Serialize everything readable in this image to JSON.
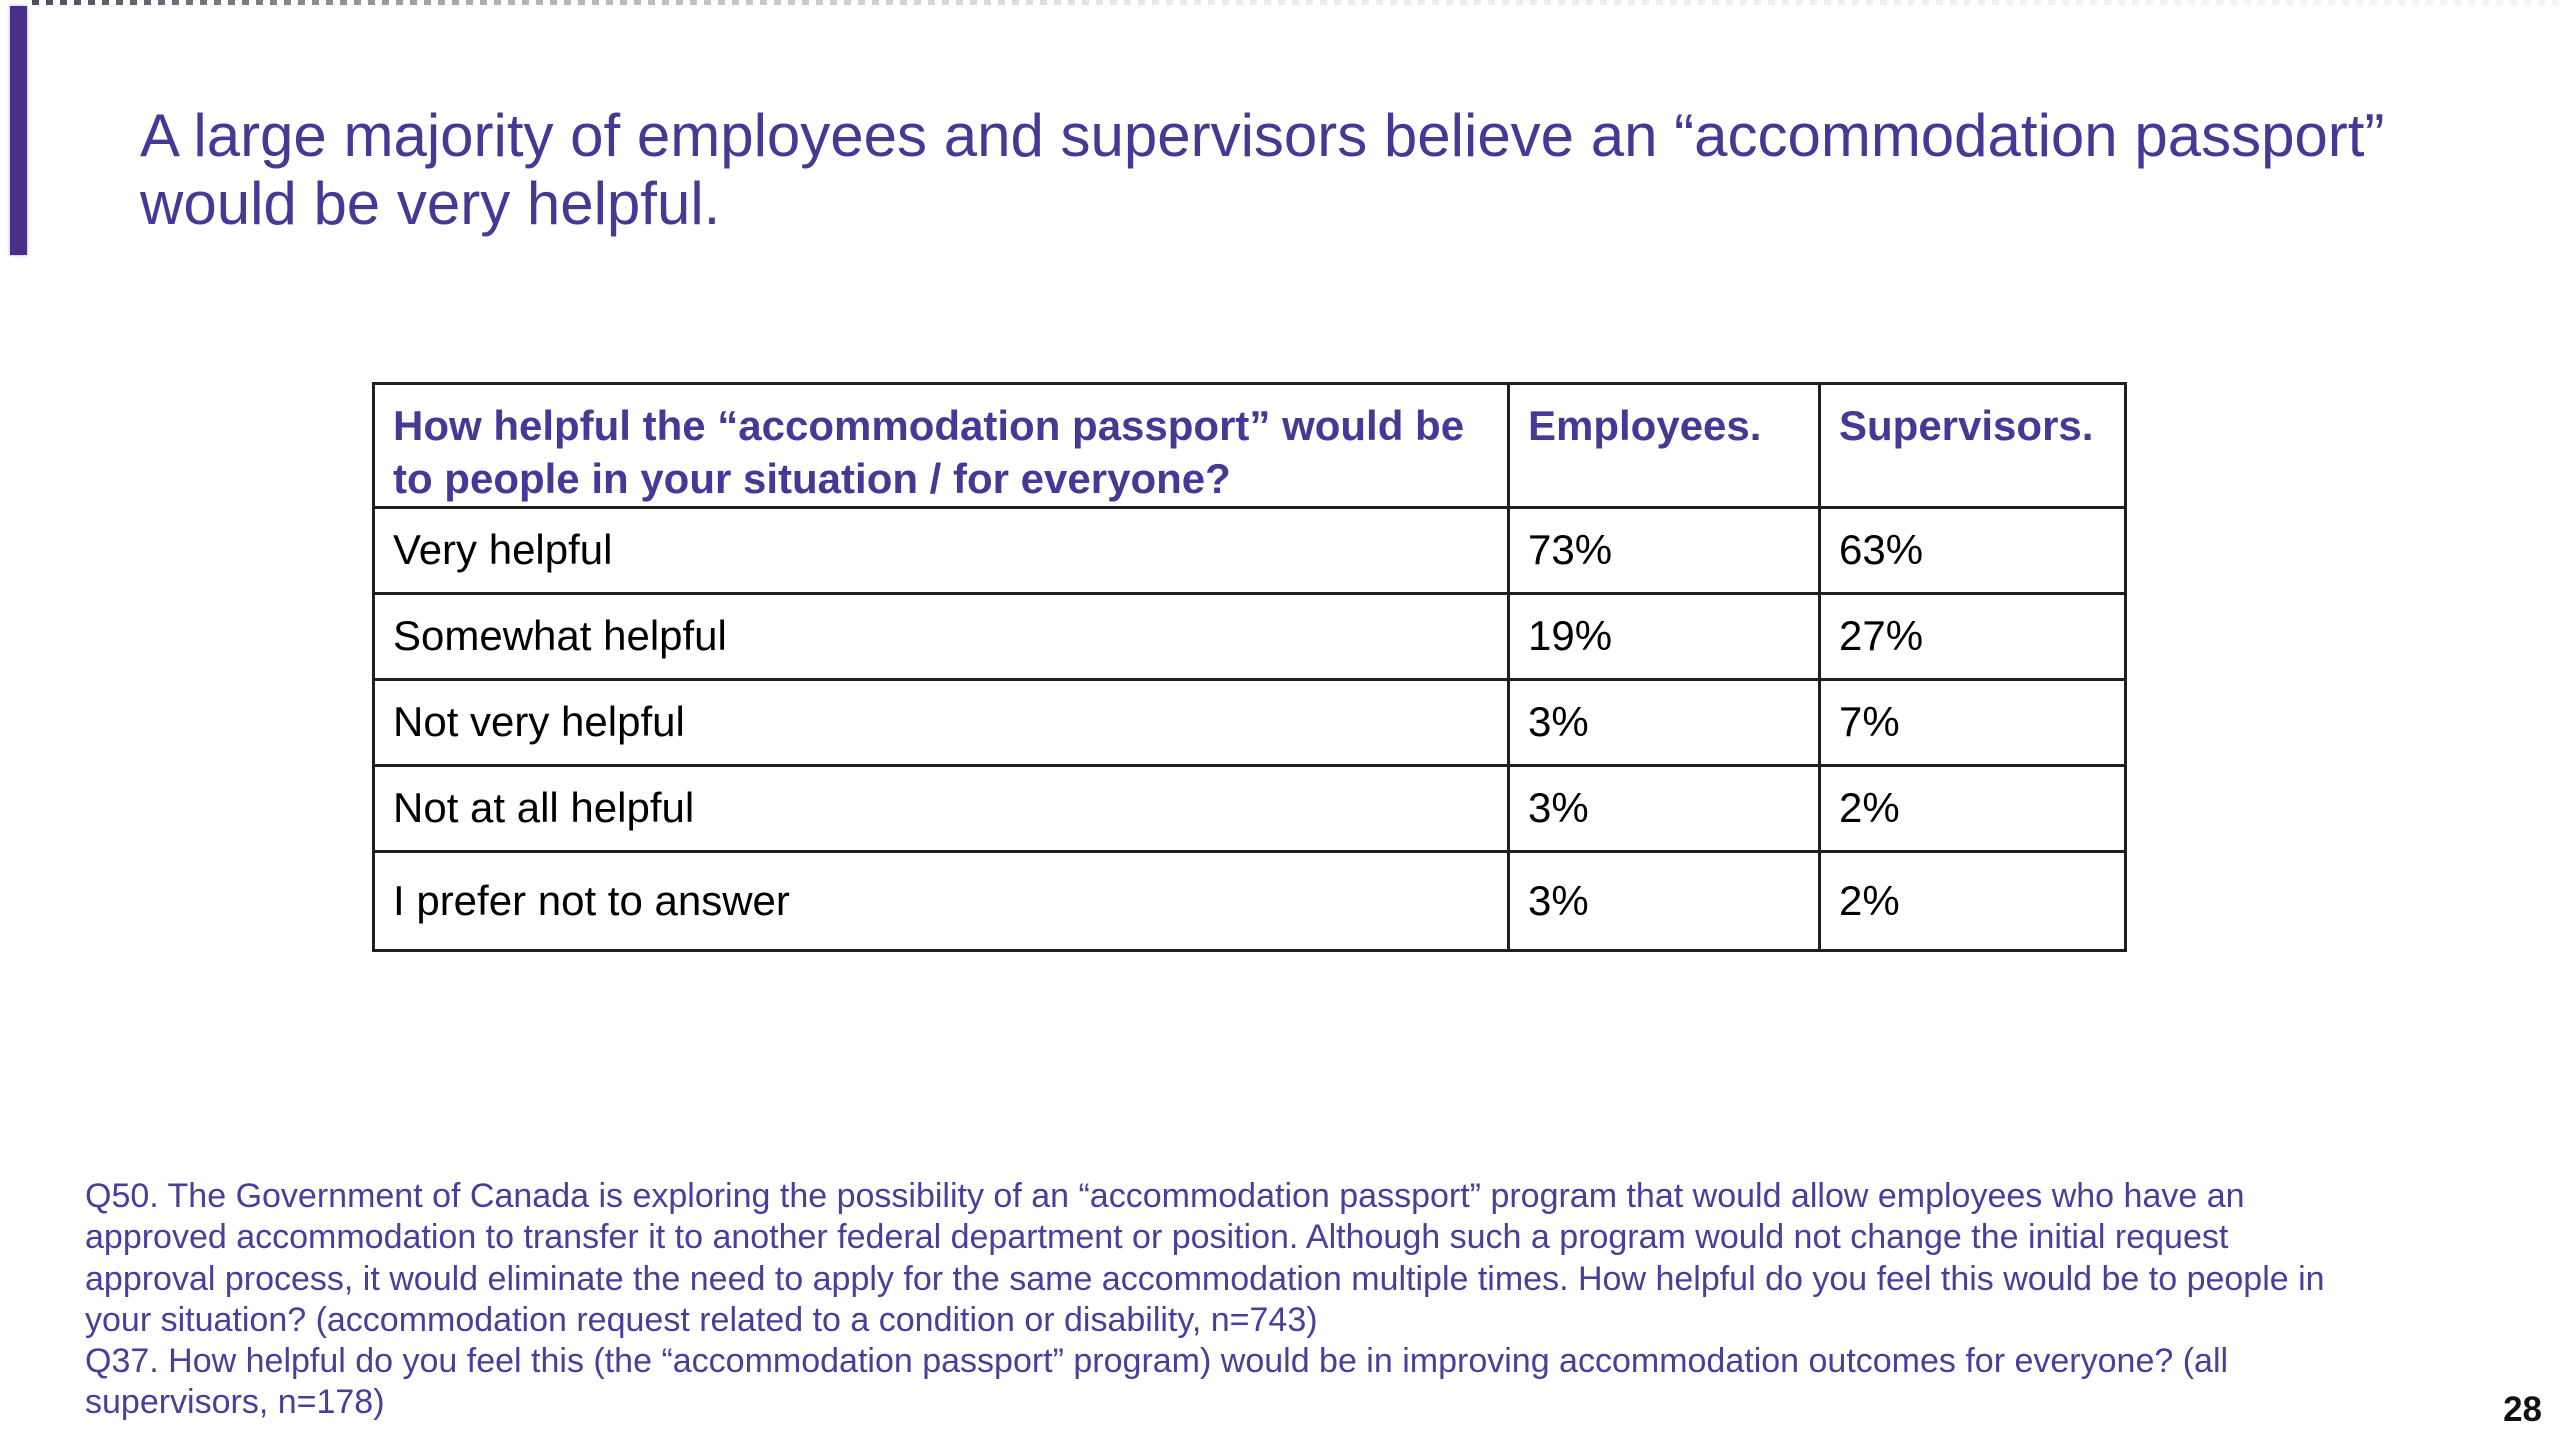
{
  "slide": {
    "title": "A large majority of employees and supervisors believe an “accommodation passport” would be very helpful.",
    "page_number": "28"
  },
  "table": {
    "header": {
      "question": "How helpful the “accommodation passport” would be to people in your situation / for everyone?",
      "col_employees": "Employees.",
      "col_supervisors": "Supervisors."
    },
    "rows": [
      {
        "label": "Very helpful",
        "employees": "73%",
        "supervisors": "63%"
      },
      {
        "label": "Somewhat helpful",
        "employees": "19%",
        "supervisors": "27%"
      },
      {
        "label": "Not very helpful",
        "employees": "3%",
        "supervisors": "7%"
      },
      {
        "label": "Not at all helpful",
        "employees": "3%",
        "supervisors": "2%"
      },
      {
        "label": "I prefer not to answer",
        "employees": "3%",
        "supervisors": "2%"
      }
    ]
  },
  "footnotes": {
    "q50": "Q50. The Government of Canada is exploring the possibility of an “accommodation passport” program that would allow employees who have an approved accommodation to transfer it to another federal department or position. Although such a program would not change the initial request approval process, it would eliminate the need to apply for the same accommodation multiple times. How helpful do you feel this would be to people in your situation? (accommodation request related to a condition or disability, n=743)",
    "q37": "Q37. How helpful do you feel this (the “accommodation passport” program) would be in improving accommodation outcomes for everyone? (all supervisors, n=178)"
  },
  "colors": {
    "title_purple": "#473896",
    "footnote_purple": "#4d3d9b",
    "accent_bar_purple": "#4b2e88",
    "table_border": "#1f1f1f",
    "body_text": "#000000"
  }
}
